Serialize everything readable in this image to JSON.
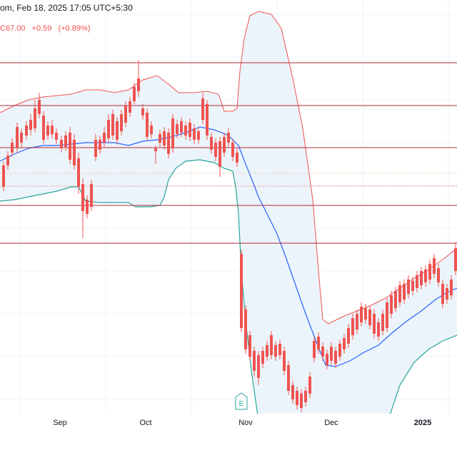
{
  "header": {
    "line1": "om, Feb 18, 2025 17:05 UTC+5:30",
    "close": "C67.00",
    "change": "+0.59",
    "change_pct": "(+0.89%)"
  },
  "colors": {
    "up": "#26a69a",
    "down": "#ef5350",
    "upper_band": "#ef5350",
    "lower_band": "#26a69a",
    "basis": "#2962ff",
    "band_fill": "#eaf3fb",
    "level_line": "#b22833",
    "grid": "#f0f3fa",
    "axis_text": "#131722"
  },
  "event_marker": {
    "label": "E",
    "icon": "earnings-flag-icon"
  },
  "chart_data": {
    "type": "candlestick",
    "indicator": "Bollinger Bands",
    "x_labels": [
      "Sep",
      "Oct",
      "Nov",
      "Dec",
      "2025"
    ],
    "ylim": [
      0,
      640
    ],
    "levels": [
      88,
      148,
      207,
      288,
      341
    ],
    "dotted_levels": [
      {
        "y": 243,
        "color": "#f0b27a"
      },
      {
        "y": 261,
        "color": "#ef5350"
      }
    ],
    "candles": [
      [
        5,
        232,
        262,
        268,
        226
      ],
      [
        11,
        218,
        232,
        238,
        212
      ],
      [
        17,
        200,
        214,
        220,
        194
      ],
      [
        24,
        178,
        208,
        215,
        172
      ],
      [
        30,
        186,
        200,
        206,
        180
      ],
      [
        37,
        176,
        190,
        196,
        170
      ],
      [
        43,
        168,
        182,
        190,
        160
      ],
      [
        49,
        152,
        180,
        186,
        140
      ],
      [
        55,
        140,
        160,
        166,
        130
      ],
      [
        61,
        162,
        196,
        202,
        156
      ],
      [
        67,
        176,
        190,
        196,
        170
      ],
      [
        73,
        176,
        188,
        194,
        168
      ],
      [
        79,
        186,
        196,
        202,
        180
      ],
      [
        86,
        196,
        208,
        214,
        190
      ],
      [
        92,
        190,
        206,
        212,
        184
      ],
      [
        98,
        186,
        224,
        230,
        178
      ],
      [
        104,
        196,
        232,
        238,
        188
      ],
      [
        110,
        222,
        262,
        272,
        214
      ],
      [
        116,
        258,
        296,
        334,
        250
      ],
      [
        122,
        280,
        300,
        306,
        274
      ],
      [
        128,
        258,
        290,
        296,
        252
      ],
      [
        134,
        196,
        220,
        226,
        188
      ],
      [
        140,
        196,
        210,
        216,
        190
      ],
      [
        146,
        186,
        200,
        206,
        178
      ],
      [
        152,
        168,
        194,
        200,
        160
      ],
      [
        158,
        160,
        190,
        196,
        154
      ],
      [
        164,
        170,
        196,
        202,
        164
      ],
      [
        170,
        160,
        184,
        190,
        154
      ],
      [
        176,
        148,
        172,
        178,
        142
      ],
      [
        182,
        142,
        158,
        164,
        136
      ],
      [
        188,
        122,
        142,
        146,
        116
      ],
      [
        194,
        110,
        128,
        136,
        84
      ],
      [
        200,
        152,
        162,
        168,
        146
      ],
      [
        206,
        158,
        192,
        198,
        152
      ],
      [
        212,
        176,
        188,
        194,
        170
      ],
      [
        218,
        208,
        212,
        230,
        204
      ],
      [
        224,
        188,
        200,
        206,
        182
      ],
      [
        230,
        184,
        204,
        210,
        178
      ],
      [
        236,
        186,
        216,
        222,
        180
      ],
      [
        242,
        166,
        208,
        214,
        160
      ],
      [
        248,
        174,
        188,
        194,
        168
      ],
      [
        254,
        170,
        186,
        192,
        164
      ],
      [
        260,
        176,
        190,
        196,
        170
      ],
      [
        266,
        172,
        192,
        198,
        166
      ],
      [
        272,
        180,
        196,
        202,
        174
      ],
      [
        278,
        184,
        196,
        202,
        178
      ],
      [
        284,
        138,
        168,
        174,
        130
      ],
      [
        290,
        146,
        190,
        196,
        140
      ],
      [
        296,
        192,
        210,
        216,
        186
      ],
      [
        302,
        200,
        220,
        226,
        194
      ],
      [
        308,
        198,
        234,
        248,
        192
      ],
      [
        314,
        192,
        214,
        220,
        186
      ],
      [
        320,
        186,
        200,
        206,
        180
      ],
      [
        326,
        200,
        220,
        226,
        194
      ],
      [
        332,
        214,
        228,
        234,
        208
      ],
      [
        338,
        356,
        460,
        466,
        350
      ],
      [
        344,
        434,
        490,
        496,
        428
      ],
      [
        350,
        470,
        500,
        506,
        464
      ],
      [
        356,
        492,
        520,
        528,
        486
      ],
      [
        362,
        498,
        530,
        540,
        492
      ],
      [
        368,
        492,
        510,
        516,
        486
      ],
      [
        374,
        484,
        500,
        506,
        478
      ],
      [
        380,
        470,
        498,
        504,
        464
      ],
      [
        386,
        484,
        500,
        506,
        478
      ],
      [
        392,
        482,
        498,
        504,
        476
      ],
      [
        398,
        492,
        520,
        526,
        486
      ],
      [
        404,
        512,
        548,
        554,
        506
      ],
      [
        410,
        540,
        560,
        566,
        534
      ],
      [
        416,
        548,
        568,
        574,
        542
      ],
      [
        422,
        552,
        572,
        578,
        546
      ],
      [
        428,
        548,
        564,
        570,
        542
      ],
      [
        434,
        528,
        552,
        558,
        522
      ],
      [
        440,
        478,
        502,
        508,
        472
      ],
      [
        446,
        472,
        490,
        496,
        466
      ],
      [
        452,
        486,
        500,
        506,
        480
      ],
      [
        458,
        496,
        512,
        518,
        490
      ],
      [
        464,
        486,
        506,
        512,
        480
      ],
      [
        470,
        492,
        510,
        516,
        486
      ],
      [
        476,
        482,
        500,
        506,
        476
      ],
      [
        482,
        474,
        490,
        496,
        468
      ],
      [
        488,
        460,
        482,
        488,
        454
      ],
      [
        494,
        446,
        470,
        476,
        440
      ],
      [
        500,
        440,
        462,
        468,
        434
      ],
      [
        506,
        430,
        452,
        458,
        424
      ],
      [
        512,
        432,
        448,
        454,
        426
      ],
      [
        518,
        434,
        456,
        462,
        428
      ],
      [
        524,
        440,
        468,
        474,
        434
      ],
      [
        530,
        452,
        472,
        478,
        446
      ],
      [
        536,
        440,
        464,
        470,
        434
      ],
      [
        542,
        424,
        460,
        466,
        418
      ],
      [
        548,
        414,
        440,
        446,
        408
      ],
      [
        554,
        408,
        432,
        438,
        402
      ],
      [
        560,
        400,
        424,
        430,
        394
      ],
      [
        566,
        398,
        420,
        426,
        392
      ],
      [
        572,
        392,
        412,
        418,
        386
      ],
      [
        578,
        394,
        408,
        414,
        388
      ],
      [
        584,
        386,
        404,
        410,
        380
      ],
      [
        590,
        380,
        400,
        406,
        374
      ],
      [
        596,
        378,
        396,
        402,
        372
      ],
      [
        602,
        370,
        392,
        398,
        364
      ],
      [
        608,
        362,
        384,
        390,
        356
      ],
      [
        614,
        376,
        396,
        402,
        370
      ],
      [
        620,
        398,
        426,
        432,
        392
      ],
      [
        626,
        404,
        420,
        426,
        398
      ],
      [
        632,
        392,
        414,
        420,
        386
      ],
      [
        638,
        348,
        380,
        386,
        340
      ]
    ],
    "upper_band": [
      [
        0,
        158
      ],
      [
        20,
        148
      ],
      [
        40,
        140
      ],
      [
        60,
        136
      ],
      [
        80,
        134
      ],
      [
        100,
        132
      ],
      [
        120,
        126
      ],
      [
        140,
        126
      ],
      [
        160,
        130
      ],
      [
        180,
        126
      ],
      [
        200,
        112
      ],
      [
        220,
        106
      ],
      [
        236,
        118
      ],
      [
        250,
        130
      ],
      [
        270,
        130
      ],
      [
        290,
        128
      ],
      [
        306,
        132
      ],
      [
        314,
        156
      ],
      [
        326,
        156
      ],
      [
        332,
        152
      ],
      [
        336,
        100
      ],
      [
        342,
        54
      ],
      [
        350,
        22
      ],
      [
        362,
        16
      ],
      [
        380,
        20
      ],
      [
        394,
        40
      ],
      [
        410,
        110
      ],
      [
        424,
        180
      ],
      [
        438,
        280
      ],
      [
        446,
        380
      ],
      [
        452,
        448
      ],
      [
        460,
        454
      ],
      [
        480,
        444
      ],
      [
        500,
        436
      ],
      [
        520,
        428
      ],
      [
        540,
        418
      ],
      [
        560,
        404
      ],
      [
        580,
        390
      ],
      [
        600,
        378
      ],
      [
        620,
        364
      ],
      [
        640,
        348
      ]
    ],
    "basis": [
      [
        0,
        226
      ],
      [
        20,
        216
      ],
      [
        40,
        208
      ],
      [
        60,
        204
      ],
      [
        80,
        204
      ],
      [
        100,
        202
      ],
      [
        120,
        200
      ],
      [
        140,
        200
      ],
      [
        160,
        200
      ],
      [
        180,
        204
      ],
      [
        200,
        198
      ],
      [
        220,
        196
      ],
      [
        240,
        192
      ],
      [
        260,
        186
      ],
      [
        280,
        178
      ],
      [
        300,
        182
      ],
      [
        320,
        190
      ],
      [
        334,
        204
      ],
      [
        344,
        230
      ],
      [
        352,
        250
      ],
      [
        362,
        276
      ],
      [
        374,
        300
      ],
      [
        388,
        328
      ],
      [
        400,
        360
      ],
      [
        414,
        400
      ],
      [
        428,
        440
      ],
      [
        444,
        482
      ],
      [
        456,
        512
      ],
      [
        470,
        514
      ],
      [
        490,
        506
      ],
      [
        510,
        494
      ],
      [
        530,
        484
      ],
      [
        550,
        466
      ],
      [
        570,
        450
      ],
      [
        590,
        436
      ],
      [
        610,
        420
      ],
      [
        626,
        410
      ],
      [
        640,
        404
      ]
    ],
    "lower_band": [
      [
        0,
        282
      ],
      [
        20,
        280
      ],
      [
        40,
        276
      ],
      [
        60,
        272
      ],
      [
        80,
        268
      ],
      [
        100,
        262
      ],
      [
        110,
        262
      ],
      [
        120,
        282
      ],
      [
        140,
        284
      ],
      [
        160,
        284
      ],
      [
        180,
        284
      ],
      [
        190,
        290
      ],
      [
        210,
        290
      ],
      [
        224,
        288
      ],
      [
        230,
        276
      ],
      [
        236,
        252
      ],
      [
        246,
        236
      ],
      [
        260,
        226
      ],
      [
        280,
        224
      ],
      [
        300,
        228
      ],
      [
        314,
        236
      ],
      [
        326,
        240
      ],
      [
        330,
        262
      ],
      [
        334,
        300
      ],
      [
        338,
        380
      ],
      [
        344,
        450
      ],
      [
        352,
        520
      ],
      [
        362,
        590
      ],
      [
        374,
        640
      ],
      [
        520,
        640
      ],
      [
        540,
        600
      ],
      [
        560,
        540
      ],
      [
        580,
        508
      ],
      [
        600,
        490
      ],
      [
        620,
        478
      ],
      [
        640,
        470
      ]
    ],
    "earnings_x": 338
  }
}
